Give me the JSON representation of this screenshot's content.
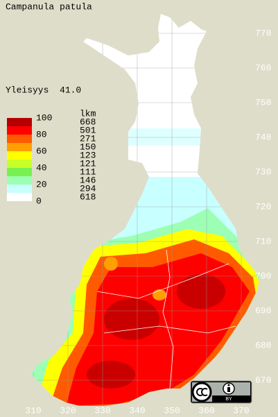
{
  "title": "Campanula patula",
  "frequency": "Yleisyys  41.0",
  "legend": {
    "header": "lkm",
    "scale": [
      100,
      80,
      60,
      40,
      20,
      0
    ],
    "counts": [
      668,
      501,
      271,
      150,
      123,
      121,
      111,
      146,
      294,
      618
    ],
    "colors": [
      "#b40000",
      "#ff0000",
      "#ff5a00",
      "#ffa000",
      "#ffff00",
      "#c8ff28",
      "#78f050",
      "#9cffb4",
      "#c8ffff",
      "#ffffff"
    ]
  },
  "y_ticks": [
    770,
    760,
    750,
    740,
    730,
    720,
    710,
    700,
    690,
    680,
    670
  ],
  "x_ticks": [
    310,
    320,
    330,
    340,
    350,
    360,
    370
  ],
  "license": "BY"
}
